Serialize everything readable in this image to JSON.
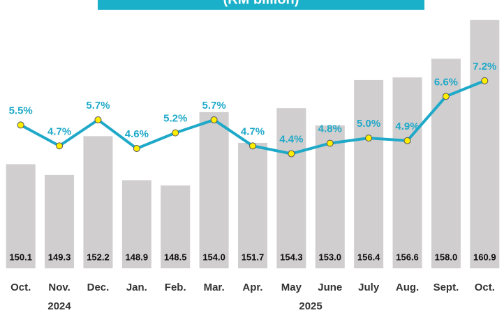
{
  "chart_data": {
    "type": "bar_line",
    "title": "(RM billion)",
    "categories": [
      "Oct.",
      "Nov.",
      "Dec.",
      "Jan.",
      "Feb.",
      "Mar.",
      "Apr.",
      "May",
      "June",
      "July",
      "Aug.",
      "Sept.",
      "Oct."
    ],
    "groups": [
      {
        "label": "2024",
        "start": 0,
        "end": 2
      },
      {
        "label": "2025",
        "start": 3,
        "end": 12
      }
    ],
    "ylim": [
      142.3,
      162.4
    ],
    "y2lim": [
      0,
      10.3
    ],
    "series": [
      {
        "type": "bar",
        "color": "#d0cece",
        "values": [
          150.1,
          149.3,
          152.2,
          148.9,
          148.5,
          154.0,
          151.7,
          154.3,
          153.0,
          156.4,
          156.6,
          158.0,
          160.9
        ],
        "value_labels": [
          "150.1",
          "149.3",
          "152.2",
          "148.9",
          "148.5",
          "154.0",
          "151.7",
          "154.3",
          "153.0",
          "156.4",
          "156.6",
          "158.0",
          "160.9"
        ]
      },
      {
        "type": "line",
        "axis": "y2",
        "color": "#1fa9c9",
        "marker_color": "#ffee00",
        "values": [
          5.5,
          4.7,
          5.7,
          4.6,
          5.2,
          5.7,
          4.7,
          4.4,
          4.8,
          5.0,
          4.9,
          6.6,
          7.2
        ],
        "value_labels": [
          "5.5%",
          "4.7%",
          "5.7%",
          "4.6%",
          "5.2%",
          "5.7%",
          "4.7%",
          "4.4%",
          "4.8%",
          "5.0%",
          "4.9%",
          "6.6%",
          "7.2%"
        ]
      }
    ]
  }
}
